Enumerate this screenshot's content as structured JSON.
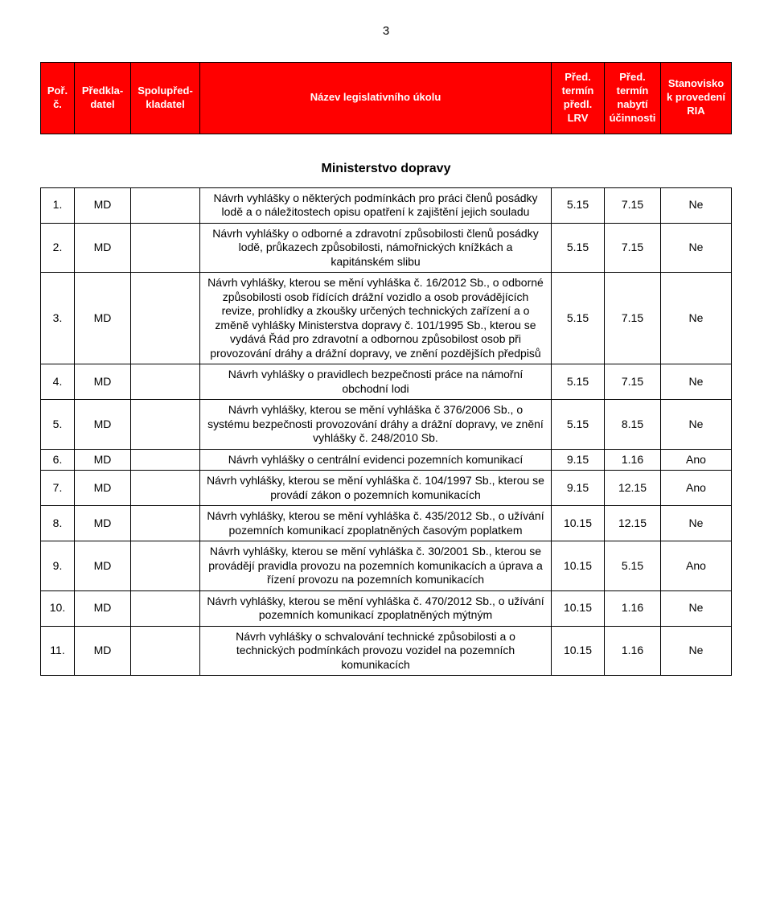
{
  "page_number": "3",
  "header": {
    "cols": [
      "Poř.\nč.",
      "Předkla-\ndatel",
      "Spolupřed-\nkladatel",
      "Název legislativního úkolu",
      "Před.\ntermín\npředl.\nLRV",
      "Před.\ntermín\nnabytí\núčinnosti",
      "Stanovisko\nk provedení\nRIA"
    ]
  },
  "ministry": "Ministerstvo dopravy",
  "rows": [
    {
      "n": "1.",
      "pred": "MD",
      "spolu": "",
      "title": "Návrh vyhlášky o některých podmínkách pro práci členů posádky lodě a o náležitostech opisu opatření k zajištění jejich souladu",
      "t1": "5.15",
      "t2": "7.15",
      "stan": "Ne"
    },
    {
      "n": "2.",
      "pred": "MD",
      "spolu": "",
      "title": "Návrh vyhlášky o odborné a zdravotní způsobilosti členů posádky lodě, průkazech způsobilosti, námořnických knížkách a kapitánském slibu",
      "t1": "5.15",
      "t2": "7.15",
      "stan": "Ne"
    },
    {
      "n": "3.",
      "pred": "MD",
      "spolu": "",
      "title": "Návrh vyhlášky, kterou se mění vyhláška č. 16/2012 Sb., o odborné způsobilosti osob řídících drážní vozidlo a osob provádějících revize, prohlídky a zkoušky určených technických zařízení a o změně vyhlášky Ministerstva dopravy č. 101/1995 Sb., kterou se vydává Řád pro zdravotní a odbornou způsobilost osob při provozování dráhy a drážní dopravy, ve znění pozdějších předpisů",
      "t1": "5.15",
      "t2": "7.15",
      "stan": "Ne"
    },
    {
      "n": "4.",
      "pred": "MD",
      "spolu": "",
      "title": "Návrh vyhlášky o pravidlech bezpečnosti práce na námořní obchodní lodi",
      "t1": "5.15",
      "t2": "7.15",
      "stan": "Ne"
    },
    {
      "n": "5.",
      "pred": "MD",
      "spolu": "",
      "title": "Návrh vyhlášky, kterou se mění vyhláška č 376/2006 Sb., o systému bezpečnosti provozování dráhy a drážní dopravy, ve znění vyhlášky č. 248/2010 Sb.",
      "t1": "5.15",
      "t2": "8.15",
      "stan": "Ne"
    },
    {
      "n": "6.",
      "pred": "MD",
      "spolu": "",
      "title": "Návrh vyhlášky o centrální evidenci pozemních komunikací",
      "t1": "9.15",
      "t2": "1.16",
      "stan": "Ano"
    },
    {
      "n": "7.",
      "pred": "MD",
      "spolu": "",
      "title": "Návrh vyhlášky, kterou se mění vyhláška č. 104/1997 Sb., kterou se provádí zákon o pozemních komunikacích",
      "t1": "9.15",
      "t2": "12.15",
      "stan": "Ano"
    },
    {
      "n": "8.",
      "pred": "MD",
      "spolu": "",
      "title": "Návrh vyhlášky, kterou se mění vyhláška č. 435/2012 Sb., o užívání pozemních komunikací zpoplatněných časovým poplatkem",
      "t1": "10.15",
      "t2": "12.15",
      "stan": "Ne"
    },
    {
      "n": "9.",
      "pred": "MD",
      "spolu": "",
      "title": "Návrh vyhlášky, kterou se mění vyhláška č. 30/2001 Sb., kterou se provádějí pravidla provozu na pozemních komunikacích a úprava a řízení provozu na pozemních komunikacích",
      "t1": "10.15",
      "t2": "5.15",
      "stan": "Ano"
    },
    {
      "n": "10.",
      "pred": "MD",
      "spolu": "",
      "title": "Návrh vyhlášky, kterou se mění vyhláška č. 470/2012 Sb., o užívání pozemních komunikací zpoplatněných mýtným",
      "t1": "10.15",
      "t2": "1.16",
      "stan": "Ne"
    },
    {
      "n": "11.",
      "pred": "MD",
      "spolu": "",
      "title": "Návrh vyhlášky o schvalování technické způsobilosti a o technických podmínkách provozu vozidel na pozemních komunikacích",
      "t1": "10.15",
      "t2": "1.16",
      "stan": "Ne"
    }
  ],
  "style": {
    "header_bg": "#ff0000",
    "header_fg": "#ffffff",
    "border_color": "#000000",
    "page_bg": "#ffffff",
    "font": "Arial"
  }
}
